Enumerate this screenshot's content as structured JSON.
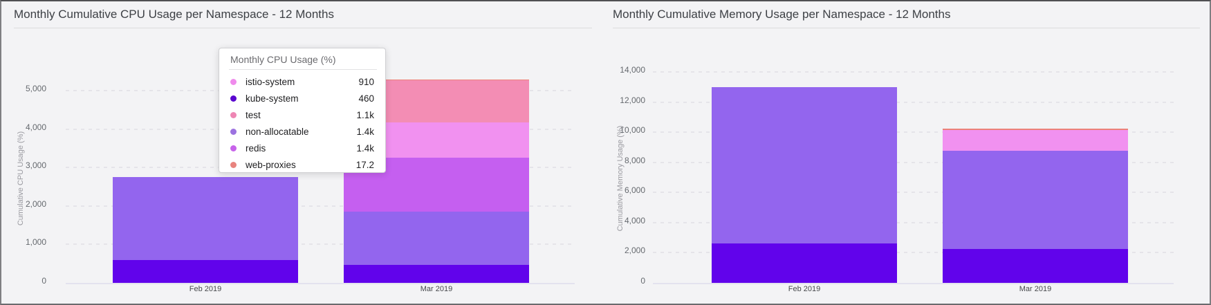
{
  "window": {
    "background": "#f3f3f5"
  },
  "chart_data": [
    {
      "type": "bar",
      "stacked": true,
      "title": "Monthly Cumulative CPU Usage per Namespace - 12 Months",
      "categories": [
        "Feb 2019",
        "Mar 2019"
      ],
      "series": [
        {
          "name": "kube-system",
          "color": "#6103eb",
          "values": [
            600,
            460
          ]
        },
        {
          "name": "non-allocatable",
          "color": "#9365ee",
          "values": [
            2150,
            1400
          ]
        },
        {
          "name": "redis",
          "color": "#c55ff0",
          "values": [
            0,
            1400
          ]
        },
        {
          "name": "istio-system",
          "color": "#f191f0",
          "values": [
            0,
            910
          ]
        },
        {
          "name": "test",
          "color": "#f38db4",
          "values": [
            0,
            1100
          ]
        },
        {
          "name": "web-proxies",
          "color": "#ec8178",
          "values": [
            0,
            17.2
          ]
        }
      ],
      "xlabel": "",
      "ylabel": "Cumulative CPU Usage (%)",
      "ylim": [
        0,
        5000
      ],
      "ytick_step": 1000,
      "yticks": [
        "0",
        "1,000",
        "2,000",
        "3,000",
        "4,000",
        "5,000"
      ],
      "grid": "dashed-horizontal",
      "legend": "none"
    },
    {
      "type": "bar",
      "stacked": true,
      "title": "Monthly Cumulative Memory Usage per Namespace - 12 Months",
      "categories": [
        "Feb 2019",
        "Mar 2019"
      ],
      "series": [
        {
          "name": "kube-system",
          "color": "#6103eb",
          "values": [
            2600,
            2250
          ]
        },
        {
          "name": "non-allocatable",
          "color": "#9365ee",
          "values": [
            10400,
            6500
          ]
        },
        {
          "name": "istio-system",
          "color": "#f191f0",
          "values": [
            0,
            1400
          ]
        },
        {
          "name": "web-proxies",
          "color": "#ec8178",
          "values": [
            0,
            100
          ]
        }
      ],
      "xlabel": "",
      "ylabel": "Cumulative Memory Usage (%)",
      "ylim": [
        0,
        14000
      ],
      "ytick_step": 2000,
      "yticks": [
        "0",
        "2,000",
        "4,000",
        "6,000",
        "8,000",
        "10,000",
        "12,000",
        "14,000"
      ],
      "grid": "dashed-horizontal",
      "legend": "none"
    }
  ],
  "tooltip": {
    "title": "Monthly CPU Usage (%)",
    "rows": [
      {
        "name": "istio-system",
        "color": "#ef8bec",
        "value": "910"
      },
      {
        "name": "kube-system",
        "color": "#5a07cf",
        "value": "460"
      },
      {
        "name": "test",
        "color": "#ee86b4",
        "value": "1.1k"
      },
      {
        "name": "non-allocatable",
        "color": "#9c72e0",
        "value": "1.4k"
      },
      {
        "name": "redis",
        "color": "#c763ea",
        "value": "1.4k"
      },
      {
        "name": "web-proxies",
        "color": "#e8837e",
        "value": "17.2"
      }
    ]
  }
}
